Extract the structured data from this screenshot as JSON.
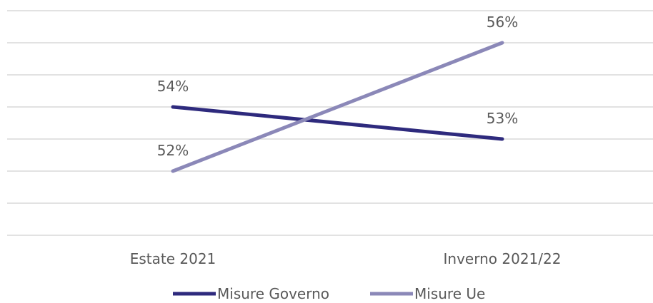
{
  "chart_data": {
    "type": "line",
    "categories": [
      "Estate 2021",
      "Inverno 2021/22"
    ],
    "series": [
      {
        "name": "Misure Governo",
        "values": [
          54,
          53
        ],
        "labels": [
          "54%",
          "53%"
        ],
        "color": "#2e2a7d"
      },
      {
        "name": "Misure Ue",
        "values": [
          52,
          56
        ],
        "labels": [
          "52%",
          "56%"
        ],
        "color": "#8b88b8"
      }
    ],
    "ylim": [
      49,
      56.5
    ],
    "grid": true,
    "legend": "bottom"
  }
}
